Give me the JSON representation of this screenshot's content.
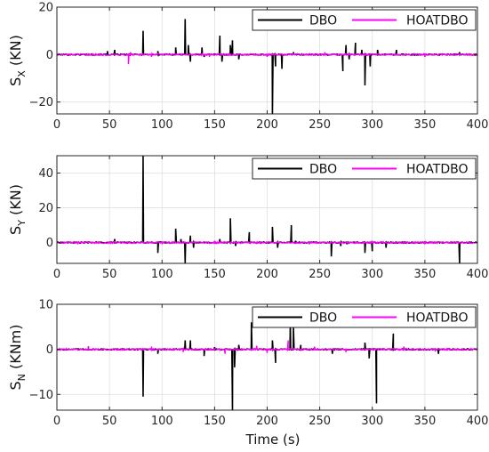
{
  "colors": {
    "dbo": "#000000",
    "hoatdbo": "#ff00ff"
  },
  "chart_data": [
    {
      "type": "line",
      "ylabel_main": "S",
      "ylabel_sub": "X",
      "ylabel_unit": " (KN)",
      "xlim": [
        0,
        400
      ],
      "ylim": [
        -25,
        20
      ],
      "xticks": [
        0,
        50,
        100,
        150,
        200,
        250,
        300,
        350,
        400
      ],
      "yticks": [
        -20,
        0,
        20
      ],
      "legend": "top-right",
      "grid": true,
      "series": [
        {
          "name": "DBO",
          "color": "#000000",
          "spikes": [
            [
              48,
              1.5
            ],
            [
              55,
              2
            ],
            [
              82,
              10
            ],
            [
              96,
              1.5
            ],
            [
              113,
              3
            ],
            [
              122,
              15
            ],
            [
              125,
              4
            ],
            [
              127,
              -3
            ],
            [
              138,
              3
            ],
            [
              140,
              -1
            ],
            [
              155,
              8
            ],
            [
              157,
              -3
            ],
            [
              165,
              4
            ],
            [
              167,
              6
            ],
            [
              173,
              -2
            ],
            [
              205,
              -25
            ],
            [
              208,
              -5
            ],
            [
              214,
              -6
            ],
            [
              225,
              1
            ],
            [
              272,
              -7
            ],
            [
              275,
              4
            ],
            [
              278,
              -2
            ],
            [
              284,
              5
            ],
            [
              290,
              2
            ],
            [
              293,
              -13
            ],
            [
              298,
              -5
            ],
            [
              305,
              2
            ],
            [
              323,
              2
            ],
            [
              383,
              1
            ]
          ]
        },
        {
          "name": "HOATDBO",
          "color": "#ff00ff",
          "spikes": [
            [
              68,
              -4
            ],
            [
              70,
              1
            ],
            [
              90,
              -1
            ],
            [
              145,
              -1
            ],
            [
              200,
              -1
            ],
            [
              255,
              1
            ],
            [
              350,
              -1
            ]
          ]
        }
      ]
    },
    {
      "type": "line",
      "ylabel_main": "S",
      "ylabel_sub": "Y",
      "ylabel_unit": " (KN)",
      "xlim": [
        0,
        400
      ],
      "ylim": [
        -12,
        50
      ],
      "xticks": [
        0,
        50,
        100,
        150,
        200,
        250,
        300,
        350,
        400
      ],
      "yticks": [
        0,
        20,
        40
      ],
      "legend": "top-right",
      "grid": true,
      "series": [
        {
          "name": "DBO",
          "color": "#000000",
          "spikes": [
            [
              55,
              2
            ],
            [
              82,
              50
            ],
            [
              96,
              -6
            ],
            [
              113,
              8
            ],
            [
              118,
              2
            ],
            [
              122,
              -12
            ],
            [
              127,
              4
            ],
            [
              130,
              -3
            ],
            [
              155,
              2
            ],
            [
              165,
              14
            ],
            [
              170,
              -2
            ],
            [
              183,
              6
            ],
            [
              205,
              9
            ],
            [
              210,
              -3
            ],
            [
              223,
              10
            ],
            [
              227,
              1
            ],
            [
              261,
              -8
            ],
            [
              270,
              -2
            ],
            [
              276,
              -1
            ],
            [
              293,
              -6
            ],
            [
              300,
              -5
            ],
            [
              313,
              -3
            ],
            [
              383,
              -13
            ]
          ]
        },
        {
          "name": "HOATDBO",
          "color": "#ff00ff",
          "spikes": [
            [
              20,
              -1
            ],
            [
              100,
              -1
            ],
            [
              150,
              1
            ],
            [
              240,
              -1
            ],
            [
              300,
              1
            ],
            [
              350,
              -1
            ]
          ]
        }
      ]
    },
    {
      "type": "line",
      "ylabel_main": "S",
      "ylabel_sub": "N",
      "ylabel_unit": " (KNm)",
      "xlim": [
        0,
        400
      ],
      "ylim": [
        -13.5,
        10
      ],
      "xticks": [
        0,
        50,
        100,
        150,
        200,
        250,
        300,
        350,
        400
      ],
      "yticks": [
        -10,
        0,
        10
      ],
      "legend": "top-right",
      "grid": true,
      "series": [
        {
          "name": "DBO",
          "color": "#000000",
          "spikes": [
            [
              82,
              -10.5
            ],
            [
              96,
              -1
            ],
            [
              122,
              2
            ],
            [
              127,
              2
            ],
            [
              140,
              -1.5
            ],
            [
              150,
              0.5
            ],
            [
              167,
              -13.5
            ],
            [
              169,
              -4
            ],
            [
              173,
              1
            ],
            [
              185,
              6
            ],
            [
              205,
              2
            ],
            [
              208,
              -3
            ],
            [
              222,
              6
            ],
            [
              225,
              5
            ],
            [
              232,
              1
            ],
            [
              262,
              -1
            ],
            [
              293,
              1.5
            ],
            [
              297,
              -2
            ],
            [
              304,
              -12
            ],
            [
              320,
              3.5
            ],
            [
              363,
              -1
            ]
          ]
        },
        {
          "name": "HOATDBO",
          "color": "#ff00ff",
          "spikes": [
            [
              30,
              0.7
            ],
            [
              90,
              0.6
            ],
            [
              120,
              -0.6
            ],
            [
              160,
              -1
            ],
            [
              190,
              0.8
            ],
            [
              200,
              -0.8
            ],
            [
              220,
              2
            ],
            [
              245,
              0.6
            ],
            [
              275,
              -0.6
            ],
            [
              330,
              0.6
            ],
            [
              360,
              -0.5
            ]
          ]
        }
      ]
    }
  ],
  "xlabel": "Time (s)"
}
